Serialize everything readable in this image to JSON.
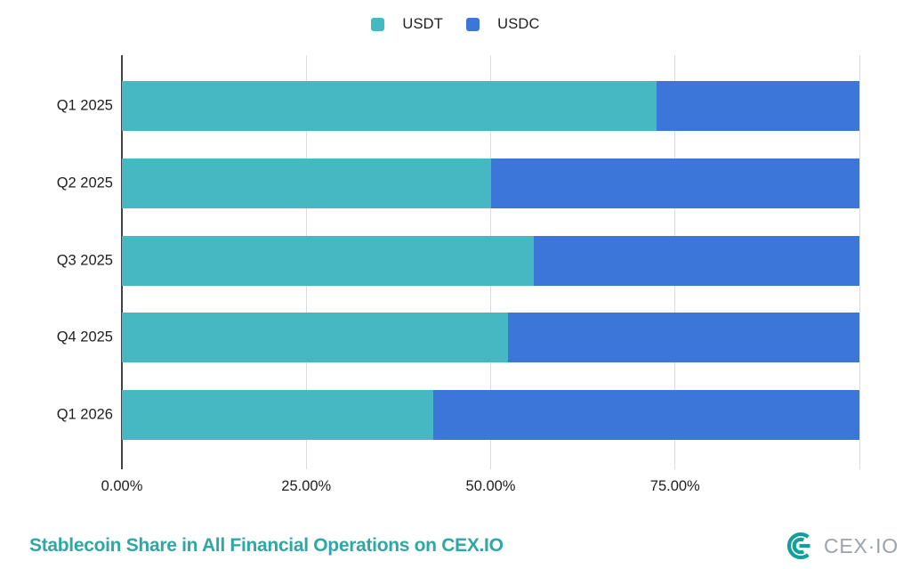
{
  "legend": {
    "items": [
      {
        "label": "USDT",
        "color": "#45b8c1"
      },
      {
        "label": "USDC",
        "color": "#3c76d8"
      }
    ]
  },
  "chart_data": {
    "type": "bar",
    "orientation": "horizontal",
    "stacked": true,
    "title": "Stablecoin Share in All Financial Operations on CEX.IO",
    "categories": [
      "Q1 2025",
      "Q2 2025",
      "Q3 2025",
      "Q4 2025",
      "Q1 2026"
    ],
    "series": [
      {
        "name": "USDT",
        "color": "#45b8c1",
        "values": [
          72.5,
          50.0,
          55.9,
          52.3,
          42.2
        ]
      },
      {
        "name": "USDC",
        "color": "#3c76d8",
        "values": [
          27.5,
          50.0,
          44.1,
          47.7,
          57.8
        ]
      }
    ],
    "xlabel": "",
    "ylabel": "",
    "xlim": [
      0,
      100
    ],
    "x_tick_labels": [
      {
        "label": "0.00%",
        "pct": 0
      },
      {
        "label": "25.00%",
        "pct": 25
      },
      {
        "label": "50.00%",
        "pct": 50
      },
      {
        "label": "75.00%",
        "pct": 75
      }
    ],
    "gridlines_pct": [
      25,
      50,
      75,
      100
    ],
    "grid": true,
    "legend_position": "top"
  },
  "footer": {
    "title": "Stablecoin Share in All Financial Operations on CEX.IO",
    "title_color": "#2fa7a3",
    "logo_text": "CEX·IO",
    "logo_mark_color": "#12a19a"
  },
  "colors": {
    "axis_line": "#3f4247",
    "gridline": "#dadcde",
    "label_text": "#1d1e1f"
  }
}
